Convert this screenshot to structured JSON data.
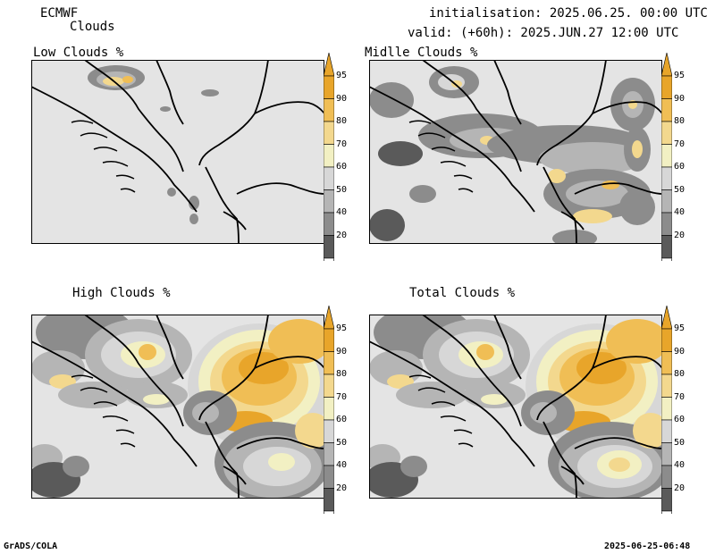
{
  "header": {
    "model": "ECMWF",
    "product": "Clouds",
    "init": "initialisation: 2025.06.25. 00:00 UTC",
    "valid": "valid: (+60h): 2025.JUN.27 12:00 UTC"
  },
  "panels": [
    {
      "title": "Low Clouds %"
    },
    {
      "title": "Midlle Clouds %"
    },
    {
      "title": "High Clouds %"
    },
    {
      "title": "Total Clouds %"
    }
  ],
  "colorbar": {
    "ticks": [
      "95",
      "90",
      "80",
      "70",
      "60",
      "50",
      "40",
      "20"
    ],
    "colors": [
      "#e8a52a",
      "#f0be55",
      "#f3d88e",
      "#f2f0c3",
      "#d7d7d7",
      "#b5b5b5",
      "#8c8c8c",
      "#5a5a5a"
    ],
    "tip_low_color": "#ffffff",
    "tip_high_color": "#e8a52a"
  },
  "map": {
    "background_color": "#e4e4e4",
    "border_color": "#000000"
  },
  "footer": {
    "left": "GrADS/COLA",
    "right": "2025-06-25-06:48"
  }
}
